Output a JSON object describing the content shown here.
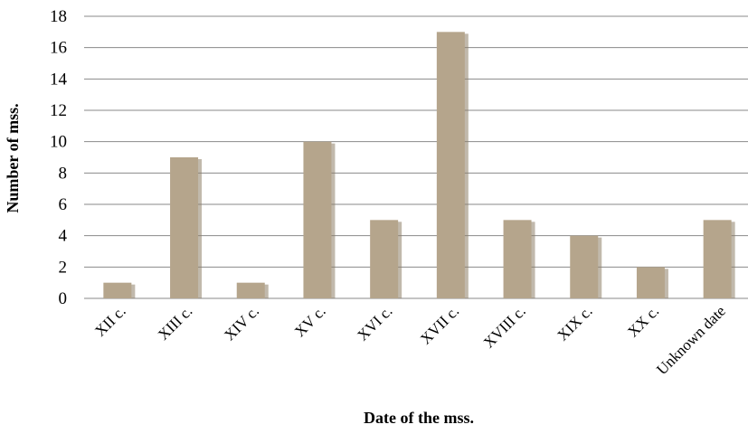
{
  "chart_data": {
    "type": "bar",
    "title": "",
    "xlabel": "Date of the mss.",
    "ylabel": "Number of mss.",
    "categories": [
      "XII c.",
      "XIII c.",
      "XIV c.",
      "XV c.",
      "XVI c.",
      "XVII c.",
      "XVIII c.",
      "XIX c.",
      "XX c.",
      "Unknown date"
    ],
    "values": [
      1,
      9,
      1,
      10,
      5,
      17,
      5,
      4,
      2,
      5
    ],
    "ylim": [
      0,
      18
    ],
    "yticks": [
      0,
      2,
      4,
      6,
      8,
      10,
      12,
      14,
      16,
      18
    ],
    "grid": true,
    "legend": "none",
    "bar_color": "#b5a58c",
    "bar_shadow_color": "#8e7f68"
  }
}
